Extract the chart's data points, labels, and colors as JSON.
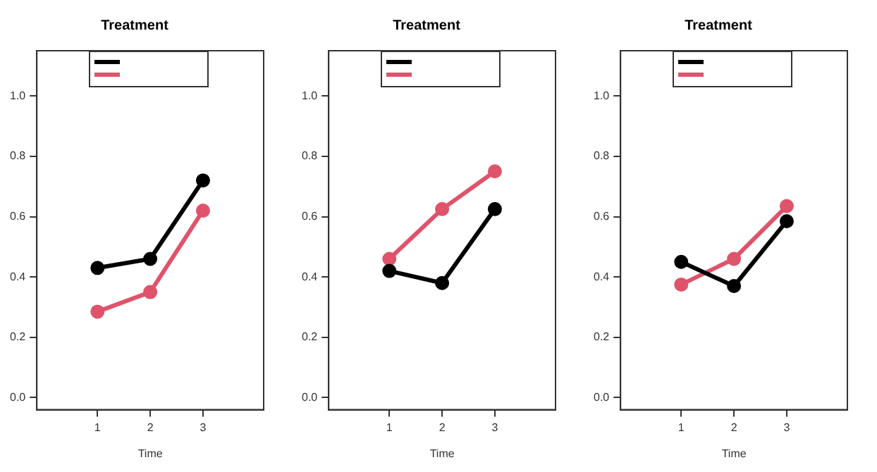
{
  "chart_data": [
    {
      "type": "line",
      "title": "Treatment",
      "xlabel": "Time",
      "x": [
        1,
        2,
        3
      ],
      "xlim": [
        -0.15,
        4.15
      ],
      "xticks": [
        1,
        2,
        3
      ],
      "ylim": [
        -0.04,
        1.15
      ],
      "yticks": [
        {
          "value": 0,
          "label": "0.0"
        },
        {
          "value": 0.2,
          "label": "0.2"
        },
        {
          "value": 0.4,
          "label": "0.4"
        },
        {
          "value": 0.6,
          "label": "0.6"
        },
        {
          "value": 0.8,
          "label": "0.8"
        },
        {
          "value": 1,
          "label": "1.0"
        }
      ],
      "grid": false,
      "marker": "circle",
      "line_style": "solid",
      "series": [
        {
          "color": "#000000",
          "values": [
            0.43,
            0.46,
            0.72
          ]
        },
        {
          "color": "#df536b",
          "values": [
            0.285,
            0.35,
            0.62
          ]
        }
      ]
    },
    {
      "type": "line",
      "title": "Treatment",
      "xlabel": "Time",
      "x": [
        1,
        2,
        3
      ],
      "xlim": [
        -0.15,
        4.15
      ],
      "xticks": [
        1,
        2,
        3
      ],
      "ylim": [
        -0.04,
        1.15
      ],
      "yticks": [
        {
          "value": 0,
          "label": "0.0"
        },
        {
          "value": 0.2,
          "label": "0.2"
        },
        {
          "value": 0.4,
          "label": "0.4"
        },
        {
          "value": 0.6,
          "label": "0.6"
        },
        {
          "value": 0.8,
          "label": "0.8"
        },
        {
          "value": 1,
          "label": "1.0"
        }
      ],
      "grid": false,
      "marker": "circle",
      "line_style": "solid",
      "series": [
        {
          "color": "#000000",
          "values": [
            0.42,
            0.38,
            0.625
          ]
        },
        {
          "color": "#df536b",
          "values": [
            0.46,
            0.625,
            0.75
          ]
        }
      ]
    },
    {
      "type": "line",
      "title": "Treatment",
      "xlabel": "Time",
      "x": [
        1,
        2,
        3
      ],
      "xlim": [
        -0.15,
        4.15
      ],
      "xticks": [
        1,
        2,
        3
      ],
      "ylim": [
        -0.04,
        1.15
      ],
      "yticks": [
        {
          "value": 0,
          "label": "0.0"
        },
        {
          "value": 0.2,
          "label": "0.2"
        },
        {
          "value": 0.4,
          "label": "0.4"
        },
        {
          "value": 0.6,
          "label": "0.6"
        },
        {
          "value": 0.8,
          "label": "0.8"
        },
        {
          "value": 1,
          "label": "1.0"
        }
      ],
      "grid": false,
      "marker": "circle",
      "line_style": "solid",
      "series": [
        {
          "color": "#000000",
          "values": [
            0.45,
            0.37,
            0.585
          ]
        },
        {
          "color": "#df536b",
          "values": [
            0.375,
            0.46,
            0.635
          ]
        }
      ]
    }
  ]
}
